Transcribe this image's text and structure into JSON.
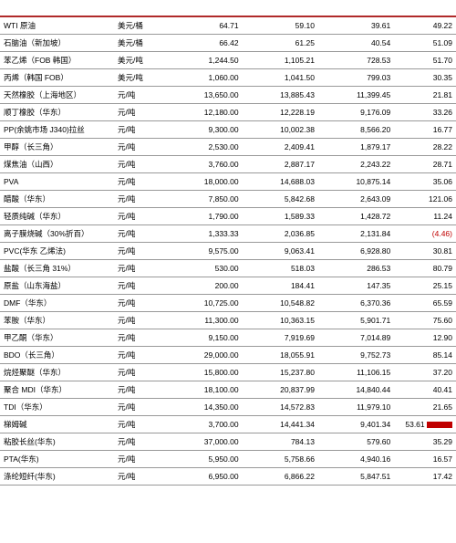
{
  "colors": {
    "accent": "#b02a2a",
    "border": "#999999",
    "neg": "#c00000",
    "text": "#000000",
    "bg": "#ffffff"
  },
  "columns": [
    "name",
    "unit",
    "v1",
    "v2",
    "v3",
    "v4"
  ],
  "rows": [
    {
      "name": "WTI 原油",
      "unit": "美元/桶",
      "v1": "64.71",
      "v2": "59.10",
      "v3": "39.61",
      "v4": "49.22"
    },
    {
      "name": "石脑油（新加坡）",
      "unit": "美元/桶",
      "v1": "66.42",
      "v2": "61.25",
      "v3": "40.54",
      "v4": "51.09"
    },
    {
      "name": "苯乙烯（FOB 韩国）",
      "unit": "美元/吨",
      "v1": "1,244.50",
      "v2": "1,105.21",
      "v3": "728.53",
      "v4": "51.70"
    },
    {
      "name": "丙烯（韩国 FOB）",
      "unit": "美元/吨",
      "v1": "1,060.00",
      "v2": "1,041.50",
      "v3": "799.03",
      "v4": "30.35"
    },
    {
      "name": "天然橡胶（上海地区）",
      "unit": "元/吨",
      "v1": "13,650.00",
      "v2": "13,885.43",
      "v3": "11,399.45",
      "v4": "21.81"
    },
    {
      "name": "顺丁橡胶（华东）",
      "unit": "元/吨",
      "v1": "12,180.00",
      "v2": "12,228.19",
      "v3": "9,176.09",
      "v4": "33.26"
    },
    {
      "name": "PP(余姚市场 J340)拉丝",
      "unit": "元/吨",
      "v1": "9,300.00",
      "v2": "10,002.38",
      "v3": "8,566.20",
      "v4": "16.77"
    },
    {
      "name": "甲醇（长三角）",
      "unit": "元/吨",
      "v1": "2,530.00",
      "v2": "2,409.41",
      "v3": "1,879.17",
      "v4": "28.22"
    },
    {
      "name": "煤焦油（山西）",
      "unit": "元/吨",
      "v1": "3,760.00",
      "v2": "2,887.17",
      "v3": "2,243.22",
      "v4": "28.71"
    },
    {
      "name": "PVA",
      "unit": "元/吨",
      "v1": "18,000.00",
      "v2": "14,688.03",
      "v3": "10,875.14",
      "v4": "35.06"
    },
    {
      "name": "醋酸（华东）",
      "unit": "元/吨",
      "v1": "7,850.00",
      "v2": "5,842.68",
      "v3": "2,643.09",
      "v4": "121.06"
    },
    {
      "name": "轻质纯碱（华东）",
      "unit": "元/吨",
      "v1": "1,790.00",
      "v2": "1,589.33",
      "v3": "1,428.72",
      "v4": "11.24"
    },
    {
      "name": "离子膜烧碱（30%折百）",
      "unit": "元/吨",
      "v1": "1,333.33",
      "v2": "2,036.85",
      "v3": "2,131.84",
      "v4": "(4.46)",
      "v4_style": "neg"
    },
    {
      "name": "PVC(华东 乙烯法)",
      "unit": "元/吨",
      "v1": "9,575.00",
      "v2": "9,063.41",
      "v3": "6,928.80",
      "v4": "30.81"
    },
    {
      "name": "盐酸（长三角 31%）",
      "unit": "元/吨",
      "v1": "530.00",
      "v2": "518.03",
      "v3": "286.53",
      "v4": "80.79"
    },
    {
      "name": "原盐（山东海盐）",
      "unit": "元/吨",
      "v1": "200.00",
      "v2": "184.41",
      "v3": "147.35",
      "v4": "25.15"
    },
    {
      "name": "DMF（华东）",
      "unit": "元/吨",
      "v1": "10,725.00",
      "v2": "10,548.82",
      "v3": "6,370.36",
      "v4": "65.59"
    },
    {
      "name": "苯胺（华东）",
      "unit": "元/吨",
      "v1": "11,300.00",
      "v2": "10,363.15",
      "v3": "5,901.71",
      "v4": "75.60"
    },
    {
      "name": "甲乙酮（华东）",
      "unit": "元/吨",
      "v1": "9,150.00",
      "v2": "7,919.69",
      "v3": "7,014.89",
      "v4": "12.90"
    },
    {
      "name": "BDO（长三角）",
      "unit": "元/吨",
      "v1": "29,000.00",
      "v2": "18,055.91",
      "v3": "9,752.73",
      "v4": "85.14"
    },
    {
      "name": "烷烃聚醚（华东）",
      "unit": "元/吨",
      "v1": "15,800.00",
      "v2": "15,237.80",
      "v3": "11,106.15",
      "v4": "37.20"
    },
    {
      "name": "聚合 MDI（华东）",
      "unit": "元/吨",
      "v1": "18,100.00",
      "v2": "20,837.99",
      "v3": "14,840.44",
      "v4": "40.41"
    },
    {
      "name": "TDI（华东）",
      "unit": "元/吨",
      "v1": "14,350.00",
      "v2": "14,572.83",
      "v3": "11,979.10",
      "v4": "21.65"
    },
    {
      "name": "梯姆碱",
      "unit": "元/吨",
      "v1": "3,700.00",
      "v2": "14,441.34",
      "v3": "9,401.34",
      "v4": "53.61",
      "accent_row": true
    },
    {
      "name": "粘胶长丝(华东)",
      "unit": "元/吨",
      "v1": "37,000.00",
      "v2": "784.13",
      "v3": "579.60",
      "v4": "35.29"
    },
    {
      "name": "PTA(华东)",
      "unit": "元/吨",
      "v1": "5,950.00",
      "v2": "5,758.66",
      "v3": "4,940.16",
      "v4": "16.57"
    },
    {
      "name": "涤纶短纤(华东)",
      "unit": "元/吨",
      "v1": "6,950.00",
      "v2": "6,866.22",
      "v3": "5,847.51",
      "v4": "17.42"
    }
  ]
}
